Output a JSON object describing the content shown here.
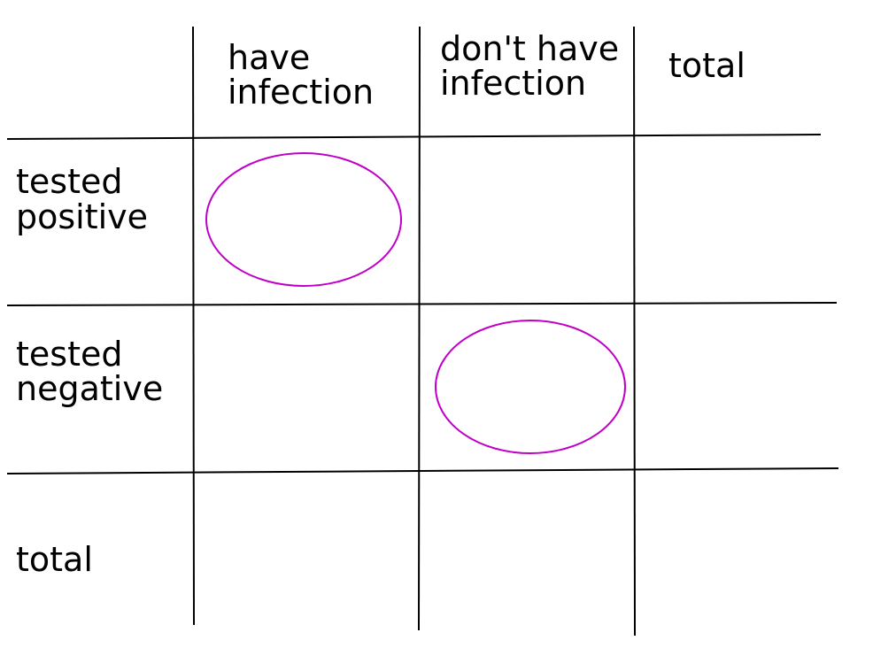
{
  "table": {
    "columns": [
      [
        "have",
        "infection"
      ],
      [
        "don't have",
        "infection"
      ],
      [
        "total"
      ]
    ],
    "rows": [
      [
        "tested",
        "positive"
      ],
      [
        "tested",
        "negative"
      ],
      [
        "total"
      ]
    ]
  }
}
